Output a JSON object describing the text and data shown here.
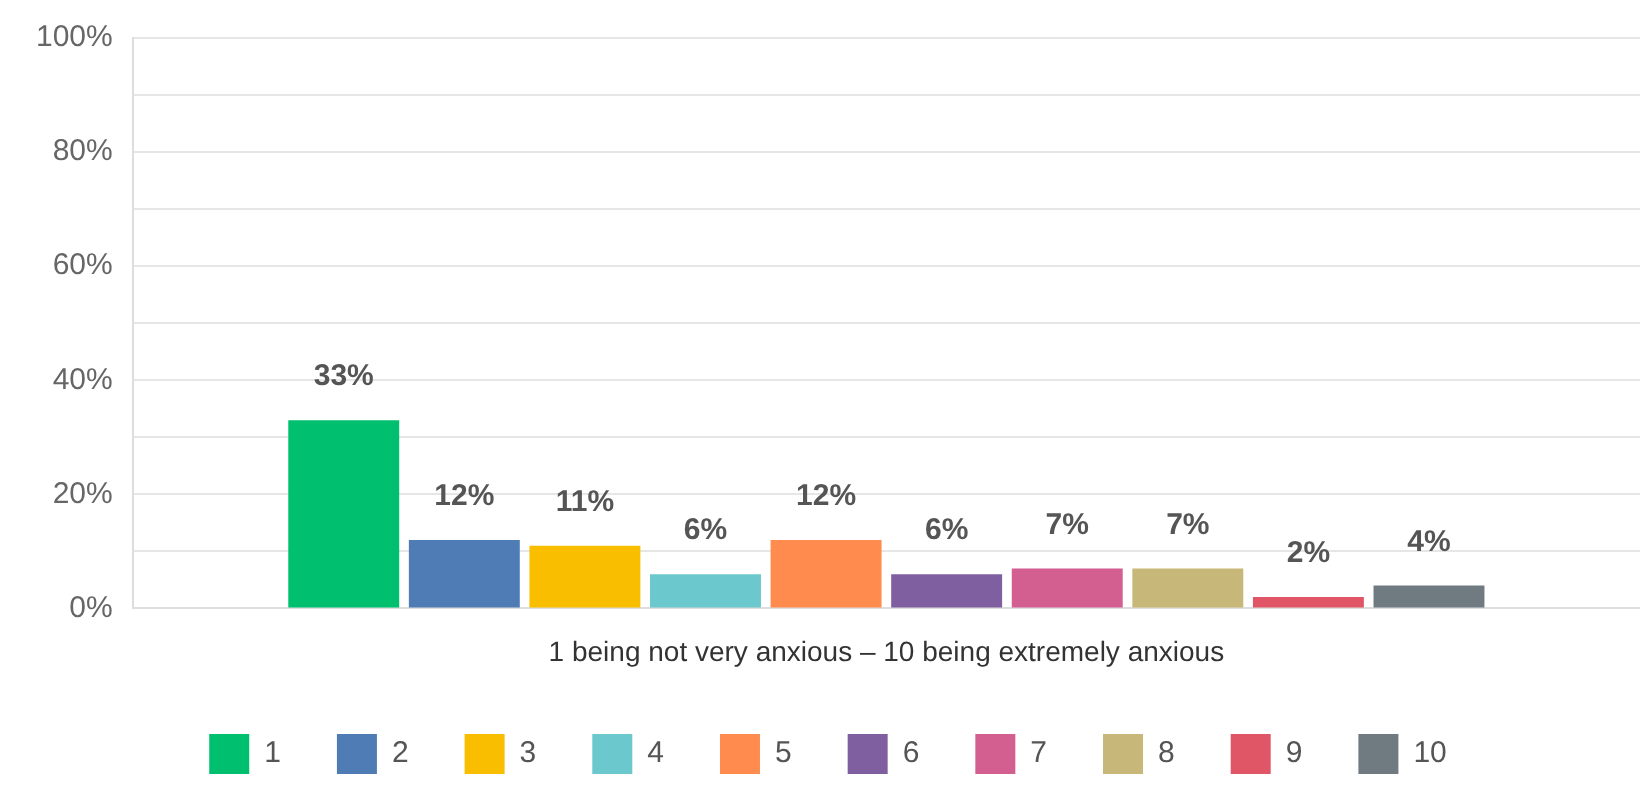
{
  "chart_data": {
    "type": "bar",
    "xlabel": "1 being not very anxious – 10 being extremely anxious",
    "categories": [
      null
    ],
    "series": [
      {
        "name": "1",
        "color": "#00bf6f",
        "values": [
          33
        ],
        "value_labels": [
          "33%"
        ]
      },
      {
        "name": "2",
        "color": "#507cb6",
        "values": [
          12
        ],
        "value_labels": [
          "12%"
        ]
      },
      {
        "name": "3",
        "color": "#f9be00",
        "values": [
          11
        ],
        "value_labels": [
          "11%"
        ]
      },
      {
        "name": "4",
        "color": "#6bc8cd",
        "values": [
          6
        ],
        "value_labels": [
          "6%"
        ]
      },
      {
        "name": "5",
        "color": "#ff8b4f",
        "values": [
          12
        ],
        "value_labels": [
          "12%"
        ]
      },
      {
        "name": "6",
        "color": "#7f5fa0",
        "values": [
          6
        ],
        "value_labels": [
          "6%"
        ]
      },
      {
        "name": "7",
        "color": "#d25f90",
        "values": [
          7
        ],
        "value_labels": [
          "7%"
        ]
      },
      {
        "name": "8",
        "color": "#c7b879",
        "values": [
          7
        ],
        "value_labels": [
          "7%"
        ]
      },
      {
        "name": "9",
        "color": "#e05666",
        "values": [
          2
        ],
        "value_labels": [
          "2%"
        ]
      },
      {
        "name": "10",
        "color": "#6f7a81",
        "values": [
          4
        ],
        "value_labels": [
          "4%"
        ]
      }
    ],
    "ylim": [
      0,
      100
    ],
    "yticks": [
      {
        "value": 0,
        "label": "0%"
      },
      {
        "value": 10,
        "label": null
      },
      {
        "value": 20,
        "label": "20%"
      },
      {
        "value": 30,
        "label": null
      },
      {
        "value": 40,
        "label": "40%"
      },
      {
        "value": 50,
        "label": null
      },
      {
        "value": 60,
        "label": "60%"
      },
      {
        "value": 70,
        "label": null
      },
      {
        "value": 80,
        "label": "80%"
      },
      {
        "value": 90,
        "label": null
      },
      {
        "value": 100,
        "label": "100%"
      }
    ],
    "grid": "y",
    "legend": "bottom"
  }
}
